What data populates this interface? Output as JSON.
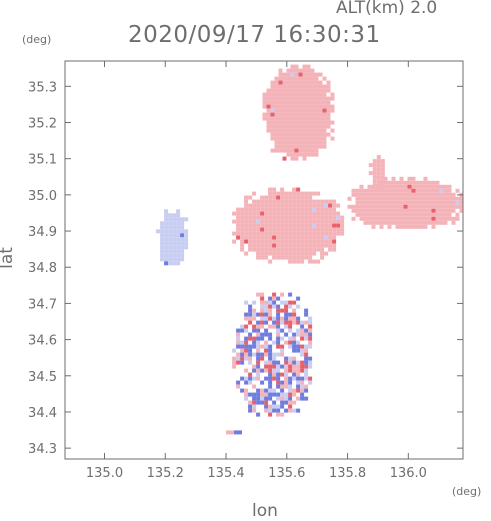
{
  "header": {
    "altitude_label": "ALT(km) 2.0",
    "timestamp": "2020/09/17 16:30:31"
  },
  "axes": {
    "y_unit": "(deg)",
    "x_unit": "(deg)",
    "y_label": "lat",
    "x_label": "lon"
  },
  "chart_data": {
    "type": "heatmap",
    "xlabel": "lon",
    "ylabel": "lat",
    "xlim": [
      134.87,
      136.18
    ],
    "ylim": [
      34.27,
      35.37
    ],
    "x_ticks": [
      "135.0",
      "135.2",
      "135.4",
      "135.6",
      "135.8",
      "136.0"
    ],
    "x_tick_values": [
      135.0,
      135.2,
      135.4,
      135.6,
      135.8,
      136.0
    ],
    "y_ticks": [
      "34.3",
      "34.4",
      "34.5",
      "34.6",
      "34.7",
      "34.8",
      "34.9",
      "35.0",
      "35.1",
      "35.2",
      "35.3"
    ],
    "y_tick_values": [
      34.3,
      34.4,
      34.5,
      34.6,
      34.7,
      34.8,
      34.9,
      35.0,
      35.1,
      35.2,
      35.3
    ],
    "colors": {
      "positive": "#f4b3b8",
      "positive_strong": "#e8606a",
      "negative": "#c8cdf2",
      "negative_strong": "#6f7de0",
      "frame": "#6e6e6e"
    },
    "regions": [
      {
        "sign": "positive",
        "lon": [
          135.52,
          135.75
        ],
        "lat": [
          35.1,
          35.36
        ]
      },
      {
        "sign": "positive",
        "lon": [
          135.42,
          135.78
        ],
        "lat": [
          34.82,
          35.02
        ]
      },
      {
        "sign": "positive",
        "lon": [
          135.8,
          136.17
        ],
        "lat": [
          34.91,
          35.05
        ]
      },
      {
        "sign": "positive",
        "lon": [
          135.87,
          135.92
        ],
        "lat": [
          35.02,
          35.11
        ]
      },
      {
        "sign": "negative",
        "lon": [
          135.17,
          135.27
        ],
        "lat": [
          34.81,
          34.96
        ]
      },
      {
        "sign": "mixed",
        "lon": [
          135.42,
          135.68
        ],
        "lat": [
          34.39,
          34.73
        ]
      },
      {
        "sign": "mixed",
        "lon": [
          135.4,
          135.45
        ],
        "lat": [
          34.34,
          34.36
        ]
      }
    ]
  }
}
